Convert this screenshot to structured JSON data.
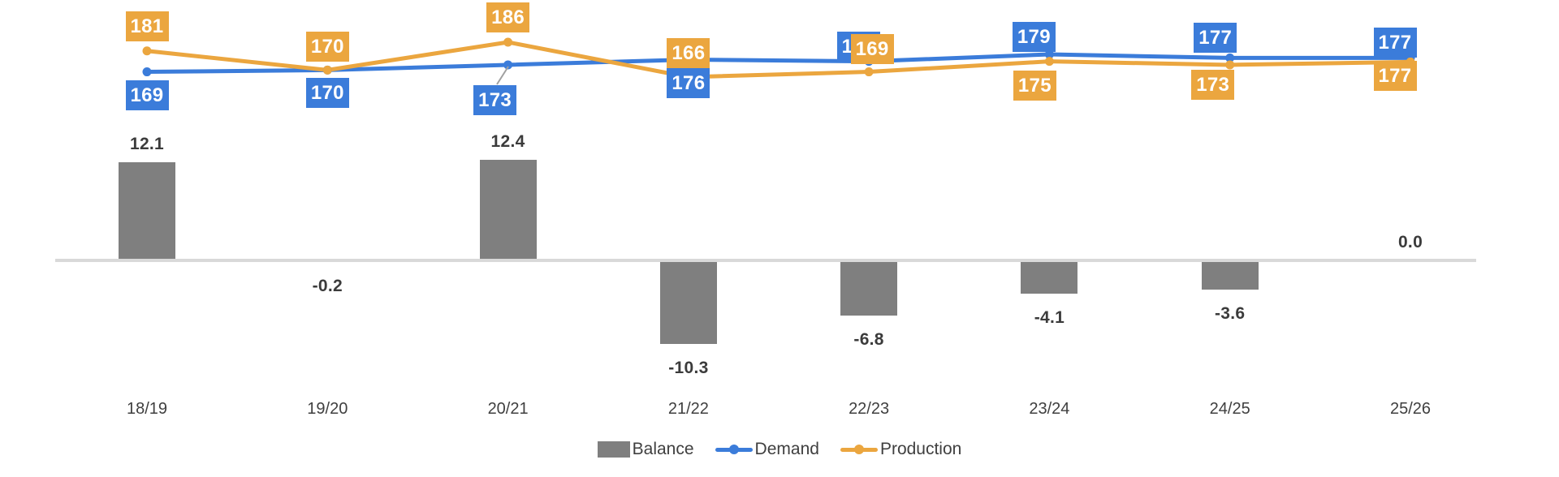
{
  "chart_data": {
    "type": "combo",
    "categories": [
      "18/19",
      "19/20",
      "20/21",
      "21/22",
      "22/23",
      "23/24",
      "24/25",
      "25/26"
    ],
    "series": [
      {
        "name": "Balance",
        "chart_type": "bar",
        "color": "#7F7F7F",
        "values": [
          12.1,
          -0.2,
          12.4,
          -10.3,
          -6.8,
          -4.1,
          -3.6,
          0.0
        ],
        "data_labels": [
          "12.1",
          "-0.2",
          "12.4",
          "-10.3",
          "-6.8",
          "-4.1",
          "-3.6",
          "0.0"
        ]
      },
      {
        "name": "Demand",
        "chart_type": "line",
        "color": "#3B7CDA",
        "values": [
          169,
          170,
          173,
          176,
          175,
          179,
          177,
          177
        ],
        "data_labels": [
          "169",
          "170",
          "173",
          "176",
          "175",
          "179",
          "177",
          "177"
        ]
      },
      {
        "name": "Production",
        "chart_type": "line",
        "color": "#EBA63F",
        "values": [
          181,
          170,
          186,
          166,
          169,
          175,
          173,
          177
        ],
        "data_labels": [
          "181",
          "170",
          "186",
          "166",
          "169",
          "175",
          "173",
          "177"
        ]
      }
    ],
    "legend": {
      "position": "bottom",
      "entries": [
        "Balance",
        "Demand",
        "Production"
      ]
    },
    "axes": {
      "x_ticks": [
        "18/19",
        "19/20",
        "20/21",
        "21/22",
        "22/23",
        "23/24",
        "24/25",
        "25/26"
      ],
      "y_axis_visible": false,
      "zero_line_visible": true
    },
    "grid": false,
    "notes": "Demand data label at 22/23 is partially covered by the Production 169 label (only leading 1 visible); Demand label at 20/21 has a gray leader line to its point."
  },
  "colors": {
    "background": "#FFFFFF",
    "balance_bar": "#7F7F7F",
    "demand_line": "#3B7CDA",
    "production_line": "#EBA63F",
    "zero_line": "#D9D9D9",
    "bar_label_text": "#3B3B3B",
    "tick_text": "#3F3F3F",
    "point_label_text": "#FFFFFF",
    "leader_line": "#A0A0A0"
  }
}
